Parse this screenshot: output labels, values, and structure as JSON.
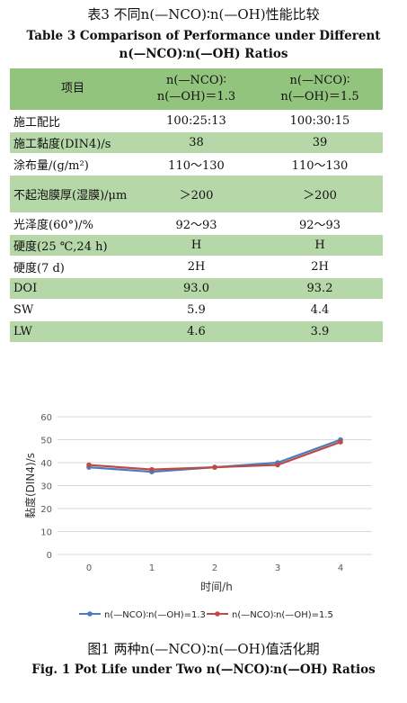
{
  "table": {
    "title_cn": "表3 不同n(—NCO)∶n(—OH)性能比较",
    "title_en": "Table 3 Comparison of Performance under Different",
    "title_en2": "n(—NCO)∶n(—OH) Ratios",
    "headers": [
      "项目",
      "n(—NCO)∶\nn(—OH)＝1.3",
      "n(—NCO)∶\nn(—OH)＝1.5"
    ],
    "rows": [
      [
        "施工配比",
        "100:25:13",
        "100:30:15"
      ],
      [
        "施工黏度(DIN4)/s",
        "38",
        "39"
      ],
      [
        "涂布量/(g/m²)",
        "110～130",
        "110～130"
      ],
      [
        "不起泡膜厚(湿膜)/μm",
        "＞200",
        "＞200"
      ],
      [
        "光泽度(60°)/%",
        "92～93",
        "92～93"
      ],
      [
        "硬度(25 ℃,24 h)",
        "H",
        "H"
      ],
      [
        "硬度(7 d)",
        "2H",
        "2H"
      ],
      [
        "DOI",
        "93.0",
        "93.2"
      ],
      [
        "SW",
        "5.9",
        "4.4"
      ],
      [
        "LW",
        "4.6",
        "3.9"
      ]
    ]
  },
  "chart_data": {
    "type": "line",
    "x": [
      0,
      1,
      2,
      3,
      4
    ],
    "xlabel": "时间/h",
    "ylabel": "黏度(DIN4)/s",
    "ylim": [
      0,
      60
    ],
    "yticks": [
      0,
      10,
      20,
      30,
      40,
      50,
      60
    ],
    "grid": true,
    "legend": "bottom",
    "series": [
      {
        "name": "n(—NCO)∶n(—OH)=1.3",
        "color": "#4a7ebb",
        "values": [
          38,
          36,
          38,
          40,
          50
        ]
      },
      {
        "name": "n(—NCO)∶n(—OH)=1.5",
        "color": "#be4b48",
        "values": [
          39,
          37,
          38,
          39,
          49
        ]
      }
    ]
  },
  "figure": {
    "title_cn": "图1 两种n(—NCO)∶n(—OH)值活化期",
    "title_en": "Fig. 1 Pot Life under Two n(—NCO)∶n(—OH) Ratios"
  }
}
